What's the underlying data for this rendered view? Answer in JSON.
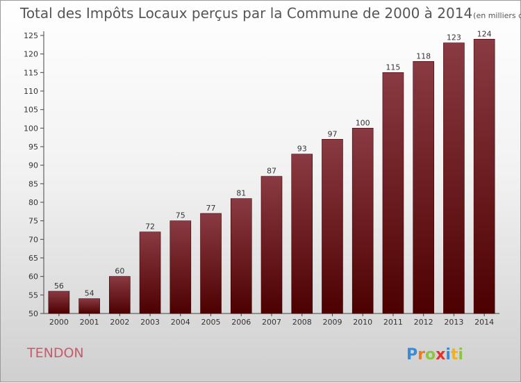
{
  "chart_data": {
    "type": "bar",
    "title": "Total des Impôts Locaux perçus par la Commune de 2000 à 2014",
    "title_unit": "(en milliers d'€)",
    "categories": [
      "2000",
      "2001",
      "2002",
      "2003",
      "2004",
      "2005",
      "2006",
      "2007",
      "2008",
      "2009",
      "2010",
      "2011",
      "2012",
      "2013",
      "2014"
    ],
    "values": [
      56,
      54,
      60,
      72,
      75,
      77,
      81,
      87,
      93,
      97,
      100,
      115,
      118,
      123,
      124
    ],
    "ylim": [
      50,
      125
    ],
    "yticks": [
      50,
      55,
      60,
      65,
      70,
      75,
      80,
      85,
      90,
      95,
      100,
      105,
      110,
      115,
      120,
      125
    ],
    "grid": false,
    "bar_color_top": "#8a3a42",
    "bar_color_bottom": "#4d0000"
  },
  "commune": "TENDON",
  "logo": {
    "letters": [
      "P",
      "r",
      "o",
      "x",
      "i",
      "t",
      "i"
    ],
    "colors": [
      "#3a8ad6",
      "#f07a1a",
      "#8cc63f",
      "#e8302a",
      "#3a8ad6",
      "#f2b21a",
      "#8cc63f"
    ]
  }
}
